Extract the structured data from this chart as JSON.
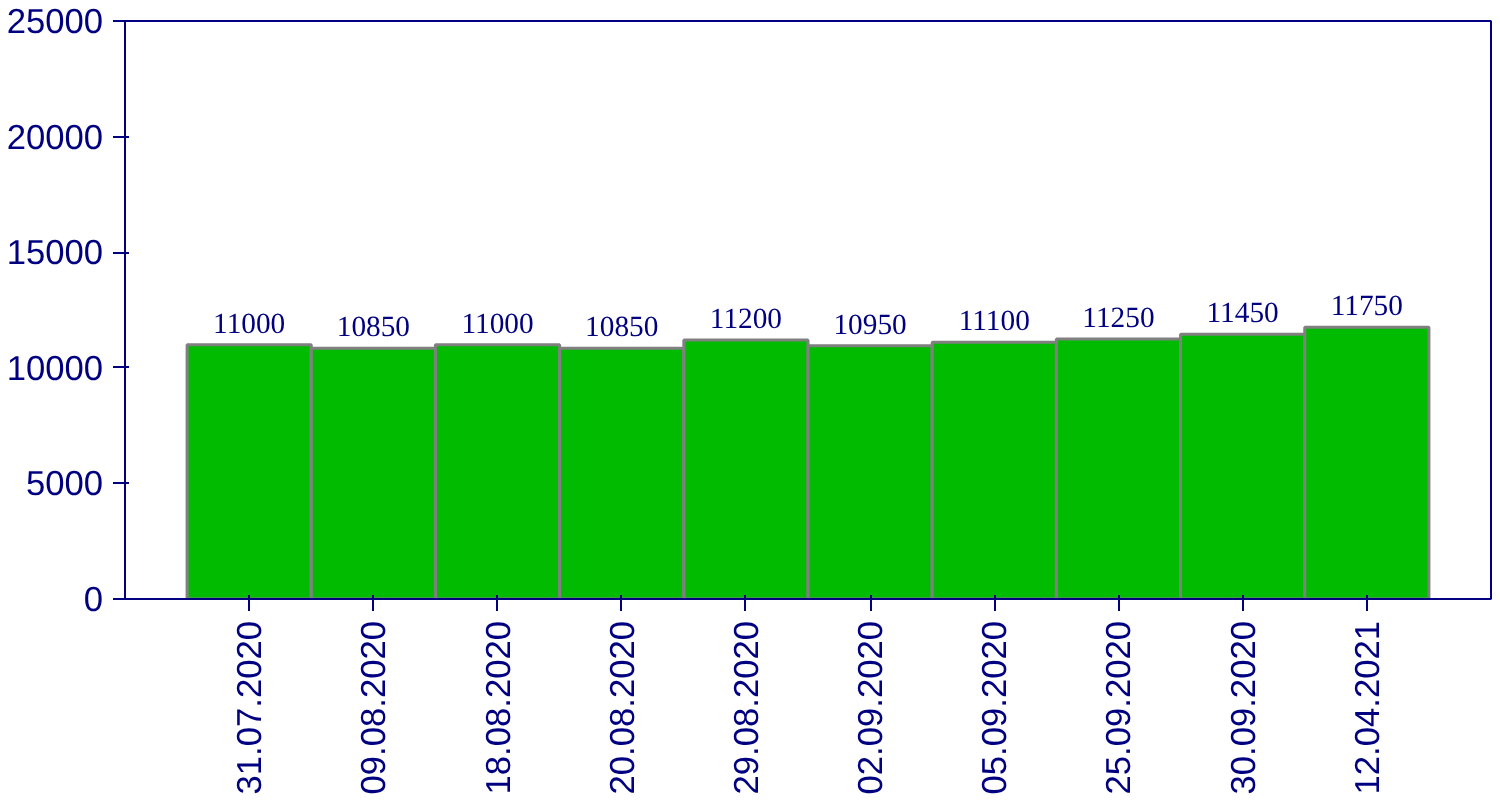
{
  "chart_data": {
    "type": "bar",
    "categories": [
      "31.07.2020",
      "09.08.2020",
      "18.08.2020",
      "20.08.2020",
      "29.08.2020",
      "02.09.2020",
      "05.09.2020",
      "25.09.2020",
      "30.09.2020",
      "12.04.2021"
    ],
    "values": [
      11000,
      10850,
      11000,
      10850,
      11200,
      10950,
      11100,
      11250,
      11450,
      11750
    ],
    "color": "#00bb00",
    "ylim": [
      0,
      25000
    ],
    "yticks": [
      0,
      5000,
      10000,
      15000,
      20000,
      25000
    ],
    "grid": false,
    "data_labels": true
  }
}
